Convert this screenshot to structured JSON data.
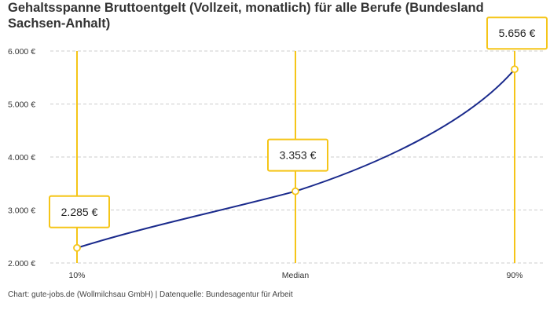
{
  "chart_data": {
    "type": "line",
    "title": "Gehaltsspanne Bruttoentgelt (Vollzeit, monatlich) für alle Berufe (Bundesland Sachsen-Anhalt)",
    "categories": [
      "10%",
      "Median",
      "90%"
    ],
    "values": [
      2285,
      3353,
      5656
    ],
    "value_labels": [
      "2.285 €",
      "3.353 €",
      "5.656 €"
    ],
    "ylim": [
      2000,
      6000
    ],
    "yticks": [
      2000,
      3000,
      4000,
      5000,
      6000
    ],
    "ytick_labels": [
      "2.000 €",
      "3.000 €",
      "4.000 €",
      "5.000 €",
      "6.000 €"
    ],
    "grid": true,
    "colors": {
      "line": "#1a2a8c",
      "marker": "#f5c518",
      "grid": "#cccccc"
    }
  },
  "footer": "Chart: gute-jobs.de (Wollmilchsau GmbH) | Datenquelle: Bundesagentur für Arbeit"
}
